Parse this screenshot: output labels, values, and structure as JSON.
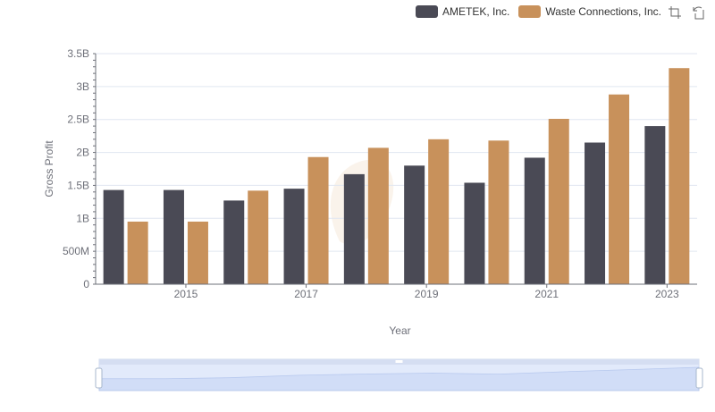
{
  "legend": {
    "items": [
      {
        "label": "AMETEK, Inc.",
        "color": "#4a4a55"
      },
      {
        "label": "Waste Connections, Inc.",
        "color": "#c8915b"
      }
    ]
  },
  "toolbox": {
    "icons": [
      "zoom-icon",
      "restore-icon"
    ]
  },
  "chart_data": {
    "type": "bar",
    "x": [
      2014,
      2015,
      2016,
      2017,
      2018,
      2019,
      2020,
      2021,
      2022,
      2023
    ],
    "xticks": [
      "2015",
      "2017",
      "2019",
      "2021",
      "2023"
    ],
    "xlabel": "Year",
    "ylabel": "Gross Profit",
    "ylim": [
      0,
      3500000000
    ],
    "yticks": [
      "0",
      "500M",
      "1B",
      "1.5B",
      "2B",
      "2.5B",
      "3B",
      "3.5B"
    ],
    "grid": true,
    "legend_position": "top-right",
    "series": [
      {
        "name": "AMETEK, Inc.",
        "color": "#4a4a55",
        "values": [
          1430000000,
          1430000000,
          1270000000,
          1450000000,
          1670000000,
          1800000000,
          1540000000,
          1920000000,
          2150000000,
          2400000000
        ]
      },
      {
        "name": "Waste Connections, Inc.",
        "color": "#c8915b",
        "values": [
          950000000,
          950000000,
          1420000000,
          1930000000,
          2070000000,
          2200000000,
          2180000000,
          2510000000,
          2880000000,
          3280000000
        ]
      }
    ]
  },
  "data_zoom": {
    "start": 0,
    "end": 100
  }
}
